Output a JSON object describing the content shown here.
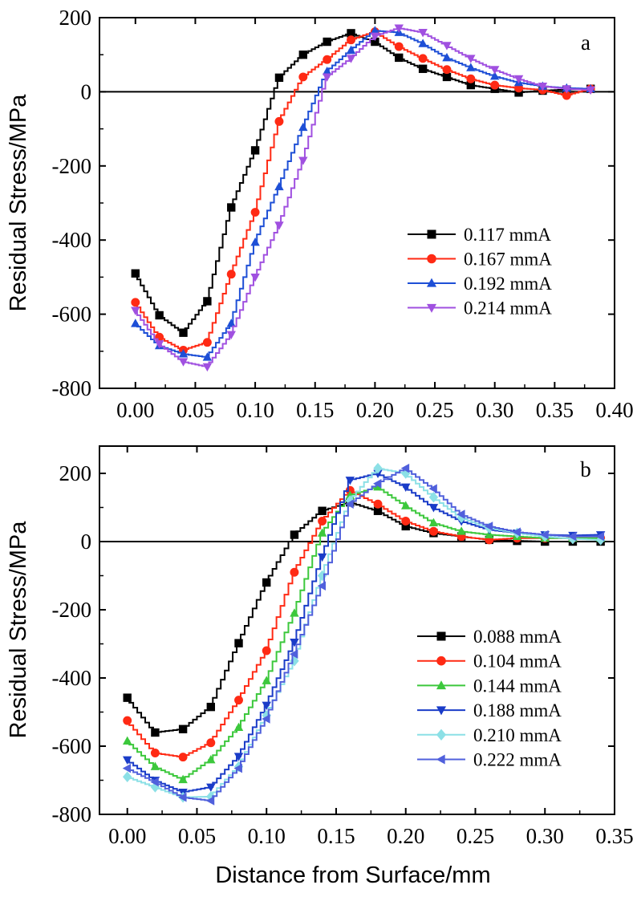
{
  "xlabel": "Distance from Surface/mm",
  "chart_data": [
    {
      "type": "line",
      "panel_label": "a",
      "ylabel": "Residual Stress/MPa",
      "xlim": [
        -0.03,
        0.4
      ],
      "ylim": [
        -800,
        200
      ],
      "x_ticks": [
        0.0,
        0.05,
        0.1,
        0.15,
        0.2,
        0.25,
        0.3,
        0.35,
        0.4
      ],
      "x_tick_labels": [
        "0.00",
        "0.05",
        "0.10",
        "0.15",
        "0.20",
        "0.25",
        "0.30",
        "0.35",
        "0.40"
      ],
      "y_ticks": [
        -800,
        -600,
        -400,
        -200,
        0,
        200
      ],
      "y_tick_labels": [
        "-800",
        "-600",
        "-400",
        "-200",
        "0",
        "200"
      ],
      "zero_line": true,
      "legend_position": "right-middle",
      "series": [
        {
          "name": "0.117 mmA",
          "color": "#000000",
          "marker": "square",
          "x": [
            0.0,
            0.02,
            0.04,
            0.06,
            0.08,
            0.1,
            0.12,
            0.14,
            0.16,
            0.18,
            0.2,
            0.22,
            0.24,
            0.26,
            0.28,
            0.3,
            0.32,
            0.34,
            0.36,
            0.38
          ],
          "y": [
            -490,
            -603,
            -650,
            -565,
            -312,
            -158,
            38,
            100,
            135,
            158,
            135,
            92,
            62,
            40,
            18,
            8,
            -2,
            3,
            6,
            8
          ]
        },
        {
          "name": "0.167 mmA",
          "color": "#ff2a14",
          "marker": "circle",
          "x": [
            0.0,
            0.02,
            0.04,
            0.06,
            0.08,
            0.1,
            0.12,
            0.14,
            0.16,
            0.18,
            0.2,
            0.22,
            0.24,
            0.26,
            0.28,
            0.3,
            0.32,
            0.34,
            0.36,
            0.38
          ],
          "y": [
            -568,
            -662,
            -697,
            -676,
            -492,
            -325,
            -80,
            40,
            87,
            140,
            162,
            122,
            90,
            60,
            35,
            18,
            10,
            5,
            -10,
            8
          ]
        },
        {
          "name": "0.192 mmA",
          "color": "#1e4fd6",
          "marker": "triangle-up",
          "x": [
            0.0,
            0.02,
            0.04,
            0.06,
            0.08,
            0.1,
            0.12,
            0.14,
            0.16,
            0.18,
            0.2,
            0.22,
            0.24,
            0.26,
            0.28,
            0.3,
            0.32,
            0.34,
            0.36,
            0.38
          ],
          "y": [
            -625,
            -685,
            -707,
            -716,
            -625,
            -406,
            -256,
            -96,
            55,
            112,
            165,
            160,
            130,
            92,
            65,
            42,
            25,
            15,
            10,
            8
          ]
        },
        {
          "name": "0.214 mmA",
          "color": "#a050e0",
          "marker": "triangle-down",
          "x": [
            0.0,
            0.02,
            0.04,
            0.06,
            0.08,
            0.1,
            0.12,
            0.14,
            0.16,
            0.18,
            0.2,
            0.22,
            0.24,
            0.26,
            0.28,
            0.3,
            0.32,
            0.34,
            0.36,
            0.38
          ],
          "y": [
            -590,
            -680,
            -728,
            -742,
            -655,
            -500,
            -360,
            -185,
            40,
            90,
            150,
            172,
            160,
            125,
            90,
            60,
            35,
            15,
            8,
            5
          ]
        }
      ]
    },
    {
      "type": "line",
      "panel_label": "b",
      "ylabel": "Residual Stress/MPa",
      "xlim": [
        -0.02,
        0.35
      ],
      "ylim": [
        -800,
        280
      ],
      "x_ticks": [
        0.0,
        0.05,
        0.1,
        0.15,
        0.2,
        0.25,
        0.3,
        0.35
      ],
      "x_tick_labels": [
        "0.00",
        "0.05",
        "0.10",
        "0.15",
        "0.20",
        "0.25",
        "0.30",
        "0.35"
      ],
      "y_ticks": [
        -800,
        -600,
        -400,
        -200,
        0,
        200
      ],
      "y_tick_labels": [
        "-800",
        "-600",
        "-400",
        "-200",
        "0",
        "200"
      ],
      "zero_line": true,
      "legend_position": "right-bottom",
      "series": [
        {
          "name": "0.088 mmA",
          "color": "#000000",
          "marker": "square",
          "x": [
            0.0,
            0.02,
            0.04,
            0.06,
            0.08,
            0.1,
            0.12,
            0.14,
            0.16,
            0.18,
            0.2,
            0.22,
            0.24,
            0.26,
            0.28,
            0.3,
            0.32,
            0.34
          ],
          "y": [
            -458,
            -560,
            -550,
            -485,
            -298,
            -120,
            20,
            90,
            115,
            90,
            45,
            25,
            15,
            5,
            2,
            0,
            0,
            0
          ]
        },
        {
          "name": "0.104 mmA",
          "color": "#ff2a14",
          "marker": "circle",
          "x": [
            0.0,
            0.02,
            0.04,
            0.06,
            0.08,
            0.1,
            0.12,
            0.14,
            0.16,
            0.18,
            0.2,
            0.22,
            0.24,
            0.26,
            0.28,
            0.3,
            0.32,
            0.34
          ],
          "y": [
            -525,
            -620,
            -632,
            -590,
            -465,
            -320,
            -90,
            60,
            150,
            110,
            60,
            30,
            15,
            5,
            10,
            10,
            10,
            10
          ]
        },
        {
          "name": "0.144 mmA",
          "color": "#3cc83c",
          "marker": "triangle-up",
          "x": [
            0.0,
            0.02,
            0.04,
            0.06,
            0.08,
            0.1,
            0.12,
            0.14,
            0.16,
            0.18,
            0.2,
            0.22,
            0.24,
            0.26,
            0.28,
            0.3,
            0.32,
            0.34
          ],
          "y": [
            -585,
            -660,
            -698,
            -640,
            -545,
            -408,
            -210,
            25,
            135,
            160,
            105,
            55,
            30,
            20,
            15,
            10,
            10,
            10
          ]
        },
        {
          "name": "0.188 mmA",
          "color": "#1a3cc8",
          "marker": "triangle-down",
          "x": [
            0.0,
            0.02,
            0.04,
            0.06,
            0.08,
            0.1,
            0.12,
            0.14,
            0.16,
            0.18,
            0.2,
            0.22,
            0.24,
            0.26,
            0.28,
            0.3,
            0.32,
            0.34
          ],
          "y": [
            -640,
            -700,
            -735,
            -720,
            -630,
            -480,
            -295,
            -45,
            180,
            200,
            160,
            100,
            60,
            35,
            25,
            20,
            18,
            20
          ]
        },
        {
          "name": "0.210 mmA",
          "color": "#8ce0e6",
          "marker": "diamond",
          "x": [
            0.0,
            0.02,
            0.04,
            0.06,
            0.08,
            0.1,
            0.12,
            0.14,
            0.16,
            0.18,
            0.2,
            0.22,
            0.24,
            0.26,
            0.28,
            0.3,
            0.32,
            0.34
          ],
          "y": [
            -690,
            -720,
            -750,
            -748,
            -660,
            -510,
            -350,
            -100,
            120,
            215,
            200,
            130,
            70,
            40,
            25,
            15,
            8,
            5
          ]
        },
        {
          "name": "0.222 mmA",
          "color": "#5060dc",
          "marker": "triangle-left",
          "x": [
            0.0,
            0.02,
            0.04,
            0.06,
            0.08,
            0.1,
            0.12,
            0.14,
            0.16,
            0.18,
            0.2,
            0.22,
            0.24,
            0.26,
            0.28,
            0.3,
            0.32,
            0.34
          ],
          "y": [
            -665,
            -705,
            -750,
            -760,
            -665,
            -520,
            -330,
            -130,
            110,
            170,
            215,
            155,
            80,
            45,
            28,
            20,
            15,
            15
          ]
        }
      ]
    }
  ]
}
